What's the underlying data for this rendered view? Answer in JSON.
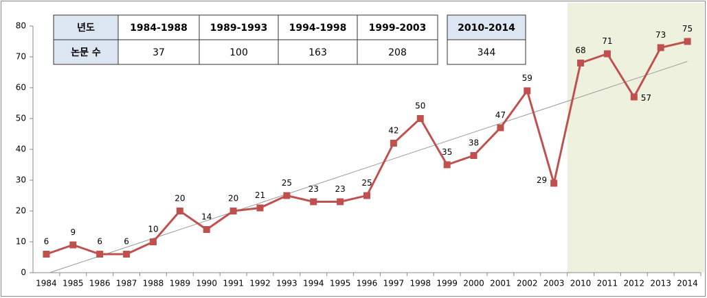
{
  "chart_data": {
    "type": "line",
    "categories": [
      "1984",
      "1985",
      "1986",
      "1987",
      "1988",
      "1989",
      "1990",
      "1991",
      "1992",
      "1993",
      "1994",
      "1995",
      "1996",
      "1997",
      "1998",
      "1999",
      "2000",
      "2001",
      "2002",
      "2003",
      "2010",
      "2011",
      "2012",
      "2013",
      "2014"
    ],
    "values": [
      6,
      9,
      6,
      6,
      10,
      20,
      14,
      20,
      21,
      25,
      23,
      23,
      25,
      42,
      50,
      35,
      38,
      47,
      59,
      29,
      68,
      71,
      57,
      73,
      75
    ],
    "color": "#c0504d",
    "trendline": true,
    "trend_color": "#999999",
    "highlight": {
      "from": "2010",
      "color": "#eef1de"
    },
    "ylim": [
      0,
      80
    ],
    "yticks": [
      0,
      10,
      20,
      30,
      40,
      50,
      60,
      70,
      80
    ]
  },
  "table": {
    "groups": [
      {
        "header": [
          "년도",
          "1984-1988",
          "1989-1993",
          "1994-1998",
          "1999-2003"
        ],
        "row": [
          "논문 수",
          37,
          100,
          163,
          208
        ]
      },
      {
        "header": [
          "2010-2014"
        ],
        "row": [
          344
        ]
      }
    ]
  }
}
